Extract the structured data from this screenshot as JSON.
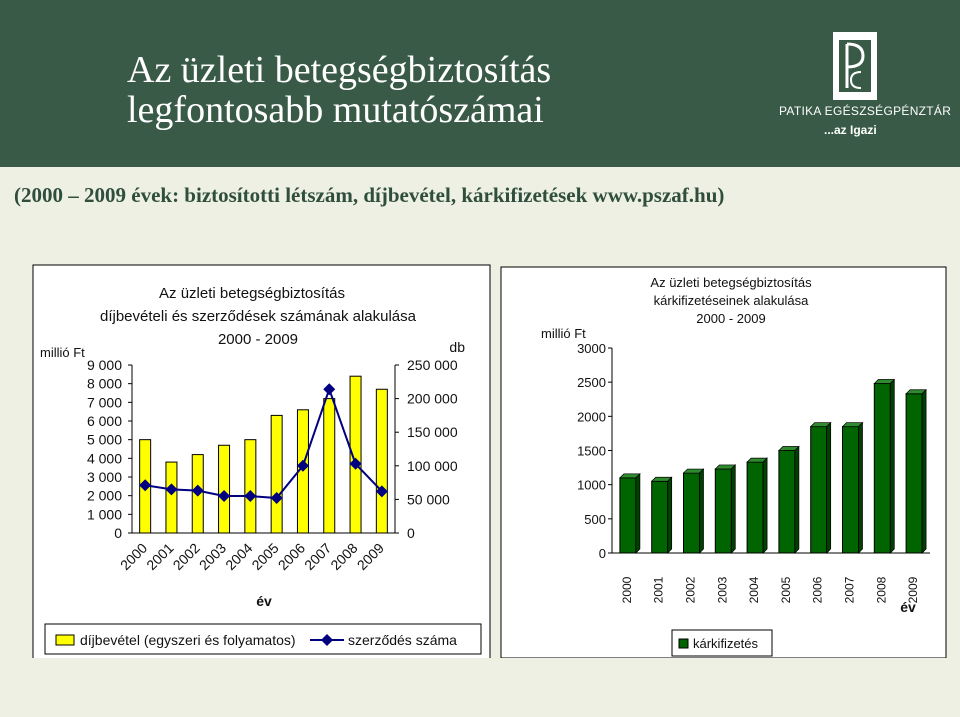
{
  "slide": {
    "title": "Az üzleti betegségbiztosítás legfontosabb mutatószámai",
    "subtitle": "(2000 – 2009 évek: biztosítotti létszám, díjbevétel, kárkifizetések www.pszaf.hu)",
    "logo": {
      "name": "PATIKA EGÉSZSÉGPÉNZTÁR",
      "slogan": "...az Igazi"
    },
    "colors": {
      "header": "#385a47",
      "background": "#eef0e4",
      "bar_yellow": "#ffff00",
      "line_navy": "#000080",
      "bar_green": "#006400"
    }
  },
  "chart_data": [
    {
      "type": "bar",
      "title_lines": [
        "Az üzleti betegségbiztosítás",
        "díjbevételi és szerződések számának alakulása",
        "2000 - 2009"
      ],
      "xlabel": "év",
      "ylabel_left": "millió Ft",
      "ylabel_right": "db",
      "categories": [
        "2000",
        "2001",
        "2002",
        "2003",
        "2004",
        "2005",
        "2006",
        "2007",
        "2008",
        "2009"
      ],
      "ylim_left": [
        0,
        9000
      ],
      "ylim_right": [
        0,
        250000
      ],
      "yticks_left": [
        "0",
        "1 000",
        "2 000",
        "3 000",
        "4 000",
        "5 000",
        "6 000",
        "7 000",
        "8 000",
        "9 000"
      ],
      "yticks_right": [
        "0",
        "50 000",
        "100 000",
        "150 000",
        "200 000",
        "250 000"
      ],
      "series": [
        {
          "name": "díjbevétel (egyszeri és folyamatos)",
          "kind": "bar",
          "axis": "left",
          "color": "#ffff00",
          "values": [
            5000,
            3800,
            4200,
            4700,
            5000,
            6300,
            6600,
            7200,
            8400,
            7700
          ]
        },
        {
          "name": "szerződés száma",
          "kind": "line",
          "axis": "right",
          "color": "#000080",
          "values": [
            71000,
            65000,
            63000,
            55000,
            55000,
            52000,
            100000,
            214000,
            103000,
            62000
          ]
        }
      ],
      "legend": "bottom"
    },
    {
      "type": "bar",
      "title_lines": [
        "Az üzleti betegségbiztosítás",
        "kárkifizetéseinek alakulása",
        "2000 - 2009"
      ],
      "xlabel": "év",
      "ylabel": "millió Ft",
      "categories": [
        "2000",
        "2001",
        "2002",
        "2003",
        "2004",
        "2005",
        "2006",
        "2007",
        "2008",
        "2009"
      ],
      "ylim": [
        0,
        3000
      ],
      "yticks": [
        "0",
        "500",
        "1000",
        "1500",
        "2000",
        "2500",
        "3000"
      ],
      "series": [
        {
          "name": "kárkifizetés",
          "color": "#006400",
          "values": [
            1100,
            1050,
            1170,
            1230,
            1330,
            1500,
            1850,
            1850,
            2480,
            2330
          ]
        }
      ],
      "legend": "bottom"
    }
  ]
}
